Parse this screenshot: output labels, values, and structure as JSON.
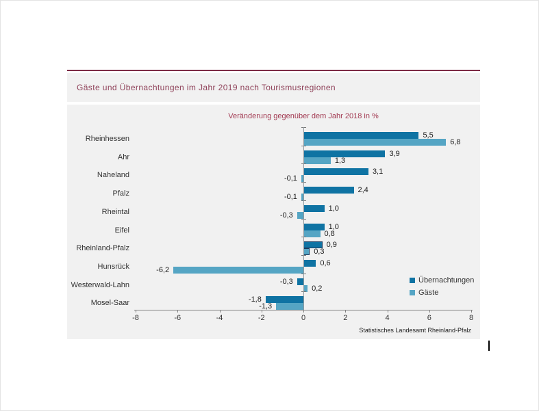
{
  "page": {
    "title": "Gäste und Übernachtungen im Jahr 2019 nach Tourismusregionen",
    "source": "Statistisches Landesamt Rheinland-Pfalz"
  },
  "chart_data": {
    "type": "bar",
    "orientation": "horizontal",
    "title": "Veränderung gegenüber dem Jahr 2018 in %",
    "categories": [
      "Rheinhessen",
      "Ahr",
      "Naheland",
      "Pfalz",
      "Rheintal",
      "Eifel",
      "Rheinland-Pfalz",
      "Hunsrück",
      "Westerwald-Lahn",
      "Mosel-Saar"
    ],
    "series": [
      {
        "name": "Übernachtungen",
        "color": "#0f73a3",
        "values": [
          5.5,
          3.9,
          3.1,
          2.4,
          1.0,
          1.0,
          0.9,
          0.6,
          -0.3,
          -1.8
        ],
        "labels": [
          "5,5",
          "3,9",
          "3,1",
          "2,4",
          "1,0",
          "1,0",
          "0,9",
          "0,6",
          "-0,3",
          "-1,8"
        ]
      },
      {
        "name": "Gäste",
        "color": "#55a5c4",
        "values": [
          6.8,
          1.3,
          -0.1,
          -0.1,
          -0.3,
          0.8,
          0.3,
          -6.2,
          0.2,
          -1.3
        ],
        "labels": [
          "6,8",
          "1,3",
          "-0,1",
          "-0,1",
          "-0,3",
          "0,8",
          "0,3",
          "-6,2",
          "0,2",
          "-1,3"
        ]
      }
    ],
    "highlighted_category": "Rheinland-Pfalz",
    "x_ticks": [
      -8,
      -6,
      -4,
      -2,
      0,
      2,
      4,
      6,
      8
    ],
    "xlim": [
      -8,
      8
    ],
    "grid": false,
    "legend_position": "right-bottom",
    "highlight_border_color": "#1d3b5e",
    "accent_color": "#7d2b45",
    "panel_background": "#f1f1f1"
  }
}
